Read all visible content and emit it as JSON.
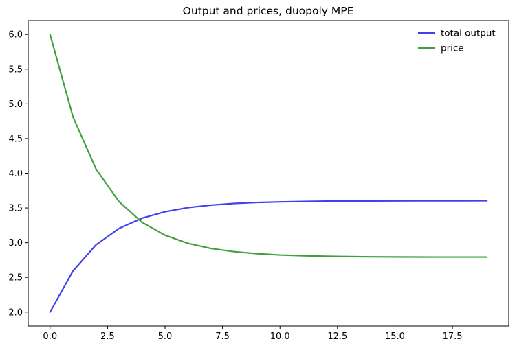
{
  "figure": {
    "title": "Output and prices, duopoly MPE",
    "background_color": "#ffffff",
    "spine_color": "#000000"
  },
  "legend": {
    "position": "upper right",
    "frame": false,
    "items": [
      {
        "label": "total output",
        "color": "#4040f0"
      },
      {
        "label": "price",
        "color": "#40a040"
      }
    ]
  },
  "axes": {
    "x_tick_labels": [
      "0.0",
      "2.5",
      "5.0",
      "7.5",
      "10.0",
      "12.5",
      "15.0",
      "17.5"
    ],
    "y_tick_labels": [
      "2.0",
      "2.5",
      "3.0",
      "3.5",
      "4.0",
      "4.5",
      "5.0",
      "5.5",
      "6.0"
    ]
  },
  "chart_data": {
    "type": "line",
    "title": "Output and prices, duopoly MPE",
    "xlabel": "",
    "ylabel": "",
    "grid": false,
    "legend_position": "upper right",
    "xlim": [
      -0.95,
      19.95
    ],
    "ylim": [
      1.8,
      6.2
    ],
    "x_tick_values": [
      0,
      2.5,
      5,
      7.5,
      10,
      12.5,
      15,
      17.5
    ],
    "y_tick_values": [
      2.0,
      2.5,
      3.0,
      3.5,
      4.0,
      4.5,
      5.0,
      5.5,
      6.0
    ],
    "x": [
      0,
      1,
      2,
      3,
      4,
      5,
      6,
      7,
      8,
      9,
      10,
      11,
      12,
      13,
      14,
      15,
      16,
      17,
      18,
      19
    ],
    "series": [
      {
        "name": "total output",
        "color": "#4040f0",
        "values": [
          2.0,
          2.595,
          2.969,
          3.205,
          3.353,
          3.446,
          3.505,
          3.541,
          3.565,
          3.579,
          3.588,
          3.594,
          3.598,
          3.6,
          3.601,
          3.602,
          3.603,
          3.603,
          3.603,
          3.604
        ]
      },
      {
        "name": "price",
        "color": "#40a040",
        "values": [
          6.0,
          4.81,
          4.061,
          3.591,
          3.294,
          3.108,
          2.991,
          2.917,
          2.871,
          2.842,
          2.823,
          2.812,
          2.805,
          2.8,
          2.797,
          2.795,
          2.794,
          2.793,
          2.793,
          2.793
        ]
      }
    ]
  }
}
